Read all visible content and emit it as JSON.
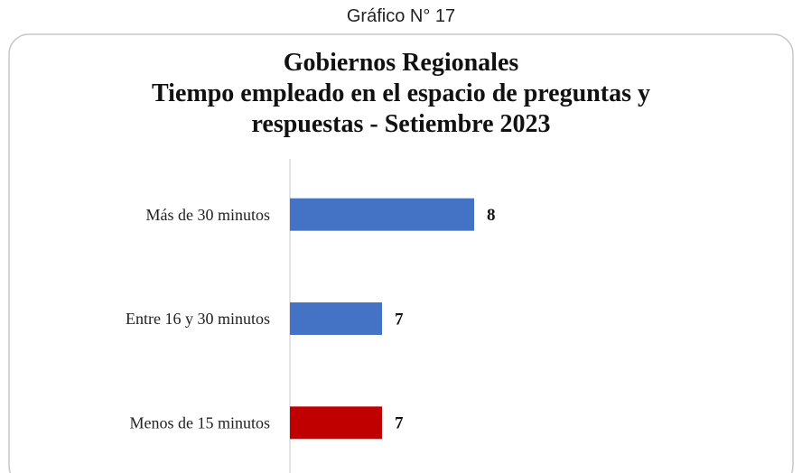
{
  "chart_data": {
    "type": "bar",
    "orientation": "horizontal",
    "caption": "Gráfico N° 17",
    "title": [
      "Gobiernos Regionales",
      "Tiempo empleado en el espacio de preguntas y",
      "respuestas - Setiembre 2023"
    ],
    "categories": [
      "Más de 30 minutos",
      "Entre 16 y 30 minutos",
      "Menos de 15 minutos"
    ],
    "values": [
      8,
      7,
      7
    ],
    "colors": [
      "#4472c4",
      "#4472c4",
      "#c00000"
    ],
    "xlim": [
      6,
      11
    ]
  }
}
